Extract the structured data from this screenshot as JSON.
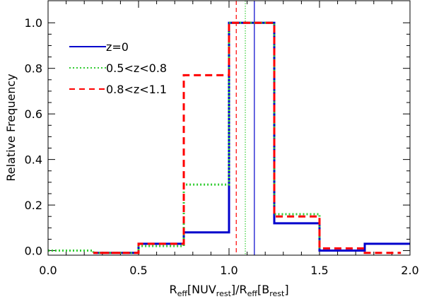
{
  "chart_data": {
    "type": "line",
    "title": "",
    "ylabel": "Relative Frequency",
    "xlabel": {
      "main1": "R",
      "sub1": "eff",
      "mid1": "[NUV",
      "sub2": "rest",
      "mid2": "]/R",
      "sub3": "eff",
      "mid3": "[B",
      "sub4": "rest",
      "end": "]"
    },
    "xlim": [
      0.0,
      2.0
    ],
    "ylim": [
      -0.02,
      1.1
    ],
    "xticks": [
      "0.0",
      "0.5",
      "1.0",
      "1.5",
      "2.0"
    ],
    "xtick_values": [
      0.0,
      0.5,
      1.0,
      1.5,
      2.0
    ],
    "yticks": [
      "0.0",
      "0.2",
      "0.4",
      "0.6",
      "0.8",
      "1.0"
    ],
    "ytick_values": [
      0.0,
      0.2,
      0.4,
      0.6,
      0.8,
      1.0
    ],
    "bin_edges": [
      0.0,
      0.25,
      0.5,
      0.75,
      1.0,
      1.25,
      1.5,
      1.75,
      2.0
    ],
    "series": [
      {
        "name": "z=0",
        "color": "#0000cc",
        "style": "solid",
        "x_start": 0.4,
        "x_end": 2.0,
        "values": [
          -0.01,
          -0.01,
          0.03,
          0.08,
          1.0,
          0.12,
          0.0,
          0.03
        ],
        "median_line": 1.14
      },
      {
        "name": "0.5<z<0.8",
        "color": "#33cc33",
        "style": "dotted",
        "x_start": 0.0,
        "x_end": 1.5,
        "values": [
          0.0,
          -0.01,
          0.02,
          0.29,
          1.0,
          0.16,
          0.0
        ],
        "median_line": 1.09
      },
      {
        "name": "0.8<z<1.1",
        "color": "#ff0000",
        "style": "dashed",
        "x_start": 0.4,
        "x_end": 1.95,
        "values": [
          -0.01,
          -0.01,
          0.03,
          0.77,
          1.0,
          0.15,
          0.01,
          -0.01
        ],
        "median_line": 1.04
      }
    ],
    "legend": {
      "placement": "top-left"
    }
  }
}
